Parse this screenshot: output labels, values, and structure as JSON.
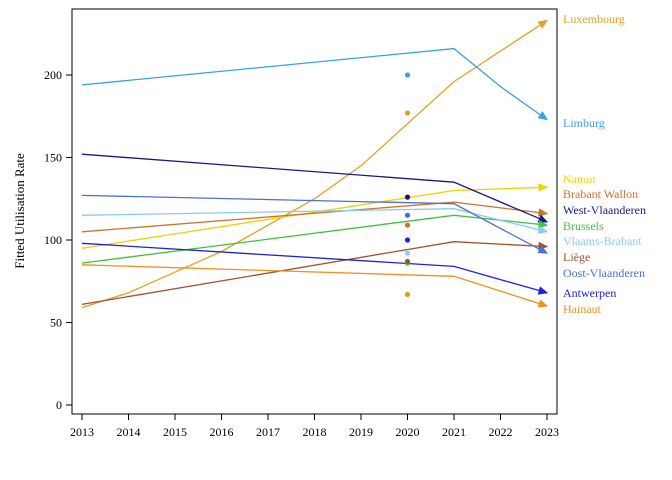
{
  "chart_data": {
    "type": "line",
    "title": "",
    "xlabel": "",
    "ylabel": "Fitted Utilisation Rate",
    "xlim": [
      2013,
      2023
    ],
    "ylim": [
      -8,
      240
    ],
    "x_ticks": [
      "2013",
      "2014",
      "2015",
      "2016",
      "2017",
      "2018",
      "2019",
      "2020",
      "2021",
      "2022",
      "2023"
    ],
    "y_ticks": [
      "0",
      "50",
      "100",
      "150",
      "200"
    ],
    "grid": false,
    "legend": "none",
    "series": [
      {
        "name": "Luxembourg",
        "color": "#E6A020",
        "x": [
          2013,
          2014,
          2016,
          2018,
          2019,
          2021,
          2023
        ],
        "y": [
          59,
          68,
          93,
          125,
          145,
          196,
          233
        ],
        "point_2020": 177
      },
      {
        "name": "Limburg",
        "color": "#3AA0E8",
        "x": [
          2013,
          2021,
          2022,
          2023
        ],
        "y": [
          194,
          216,
          193,
          173
        ],
        "point_2020": 200
      },
      {
        "name": "Namur",
        "color": "#F2D200",
        "x": [
          2013,
          2021,
          2023
        ],
        "y": [
          95,
          130,
          132
        ],
        "point_2020": 126
      },
      {
        "name": "Brabant Wallon",
        "color": "#D0722A",
        "x": [
          2013,
          2021,
          2023
        ],
        "y": [
          105,
          123,
          116
        ],
        "point_2020": 109
      },
      {
        "name": "West-Vlaanderen",
        "color": "#1A1A80",
        "x": [
          2013,
          2021,
          2023
        ],
        "y": [
          152,
          135,
          111
        ],
        "point_2020": 126
      },
      {
        "name": "Brussels",
        "color": "#40C040",
        "x": [
          2013,
          2021,
          2023
        ],
        "y": [
          86,
          115,
          109
        ],
        "point_2020": 86
      },
      {
        "name": "Vlaams-Brabant",
        "color": "#88CCEE",
        "x": [
          2013,
          2021,
          2023
        ],
        "y": [
          115,
          119,
          105
        ],
        "point_2020": 92
      },
      {
        "name": "Liège",
        "color": "#A0522D",
        "x": [
          2013,
          2021,
          2023
        ],
        "y": [
          61,
          99,
          96
        ],
        "point_2020": 87
      },
      {
        "name": "Oost-Vlaanderen",
        "color": "#4A70D8",
        "x": [
          2013,
          2021,
          2023
        ],
        "y": [
          127,
          122,
          92
        ],
        "point_2020": 115
      },
      {
        "name": "Antwerpen",
        "color": "#2020E0",
        "x": [
          2013,
          2021,
          2023
        ],
        "y": [
          98,
          84,
          68
        ],
        "point_2020": 100
      },
      {
        "name": "Hainaut",
        "color": "#F09020",
        "x": [
          2013,
          2021,
          2023
        ],
        "y": [
          85,
          78,
          60
        ],
        "point_2020": 67
      }
    ]
  }
}
